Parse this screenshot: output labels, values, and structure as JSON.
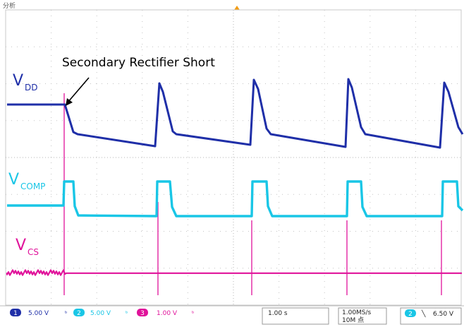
{
  "header": {
    "label": "分析"
  },
  "annotation": {
    "text": "Secondary Rectifier Short"
  },
  "traces": [
    {
      "main": "V",
      "sub": "DD",
      "color": "#1f2fa8"
    },
    {
      "main": "V",
      "sub": "COMP",
      "color": "#19c6e6"
    },
    {
      "main": "V",
      "sub": "CS",
      "color": "#e0129a"
    }
  ],
  "status": {
    "ch1": {
      "num": "1",
      "scale": "5.00 V",
      "color": "#1f2fa8"
    },
    "ch2": {
      "num": "2",
      "scale": "5.00 V",
      "color": "#19c6e6"
    },
    "ch3": {
      "num": "3",
      "scale": "1.00 V",
      "color": "#e0129a"
    },
    "timebase": "1.00 s",
    "sample_rate": "1.00MS/s",
    "record_length": "10M 点",
    "trigger": {
      "num": "2",
      "slope": "╲",
      "level": "6.50 V"
    }
  }
}
